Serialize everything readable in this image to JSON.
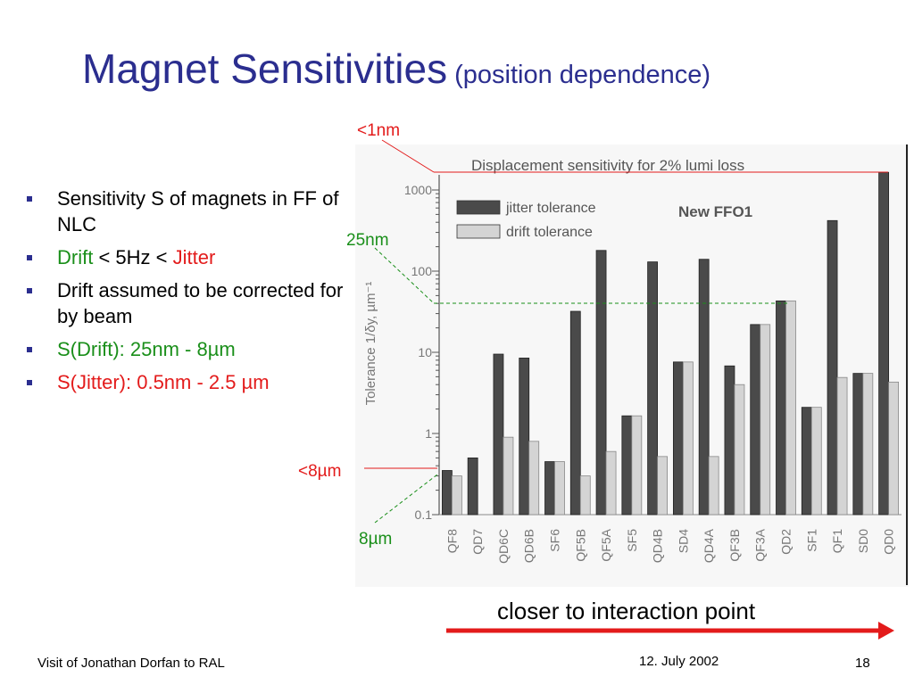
{
  "slide": {
    "title_main": "Magnet Sensitivities",
    "title_sub": "(position dependence)",
    "bullets": [
      {
        "parts": [
          {
            "text": "Sensitivity S of magnets in FF of NLC",
            "color": "#000000"
          }
        ]
      },
      {
        "parts": [
          {
            "text": "Drift",
            "color": "#1a8f1a"
          },
          {
            "text": " < 5Hz < ",
            "color": "#000000"
          },
          {
            "text": "Jitter",
            "color": "#e31b1b"
          }
        ]
      },
      {
        "parts": [
          {
            "text": "Drift assumed to be corrected for by beam",
            "color": "#000000"
          }
        ]
      },
      {
        "parts": [
          {
            "text": "S(Drift): 25nm - 8µm",
            "color": "#1a8f1a"
          }
        ]
      },
      {
        "parts": [
          {
            "text": "S(Jitter): 0.5nm - 2.5 µm",
            "color": "#e31b1b"
          }
        ]
      }
    ],
    "annotations": {
      "a1nm": "<1nm",
      "a25nm": "25nm",
      "a8um_lt": "<8µm",
      "a8um": "8µm"
    },
    "caption": "closer to interaction point",
    "footer_left": "Visit of Jonathan Dorfan to RAL",
    "footer_date": "12. July 2002",
    "page_number": "18"
  },
  "chart_data": {
    "type": "bar",
    "title": "Displacement sensitivity for 2% lumi loss",
    "inset_label": "New FFO1",
    "ylabel": "Tolerance 1/δy, µm⁻¹",
    "yscale": "log",
    "ylim": [
      0.1,
      2000
    ],
    "yticks": [
      "1000",
      "100",
      "10",
      "1",
      "0.1"
    ],
    "legend_position": "top-left",
    "categories": [
      "QF8",
      "QD7",
      "QD6C",
      "QD6B",
      "SF6",
      "QF5B",
      "QF5A",
      "SF5",
      "QD4B",
      "SD4",
      "QD4A",
      "QF3B",
      "QF3A",
      "QD2",
      "SF1",
      "QF1",
      "SD0",
      "QD0"
    ],
    "series": [
      {
        "name": "jitter tolerance",
        "color": "#4a4a4a",
        "values": [
          0.35,
          0.5,
          9.5,
          8.5,
          0.45,
          32,
          180,
          1.65,
          130,
          7.6,
          140,
          6.8,
          22,
          43,
          2.1,
          420,
          5.5,
          1650
        ]
      },
      {
        "name": "drift tolerance",
        "color": "#d4d4d4",
        "values": [
          0.3,
          0.1,
          0.9,
          0.8,
          0.45,
          0.3,
          0.6,
          1.65,
          0.52,
          7.6,
          0.52,
          4.0,
          22,
          43,
          2.1,
          4.9,
          5.5,
          4.3
        ]
      }
    ]
  }
}
